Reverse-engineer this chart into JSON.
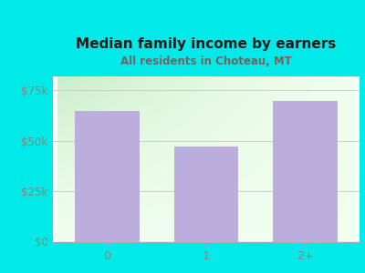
{
  "categories": [
    "0",
    "1",
    "2+"
  ],
  "values": [
    65000,
    47000,
    70000
  ],
  "bar_color": "#bbaedd",
  "title": "Median family income by earners",
  "subtitle": "All residents in Choteau, MT",
  "title_color": "#1a1a1a",
  "subtitle_color": "#7a6060",
  "background_color": "#00eaea",
  "plot_bg_top": "#f8fff8",
  "plot_bg_bottom": "#e8f8e8",
  "ylabel_ticks": [
    0,
    25000,
    50000,
    75000
  ],
  "ylabel_labels": [
    "$0",
    "$25k",
    "$50k",
    "$75k"
  ],
  "ylim": [
    0,
    82000
  ],
  "grid_color": "#cccccc",
  "tick_color": "#888877",
  "axis_color": "#aaaaaa",
  "bar_width": 0.65
}
